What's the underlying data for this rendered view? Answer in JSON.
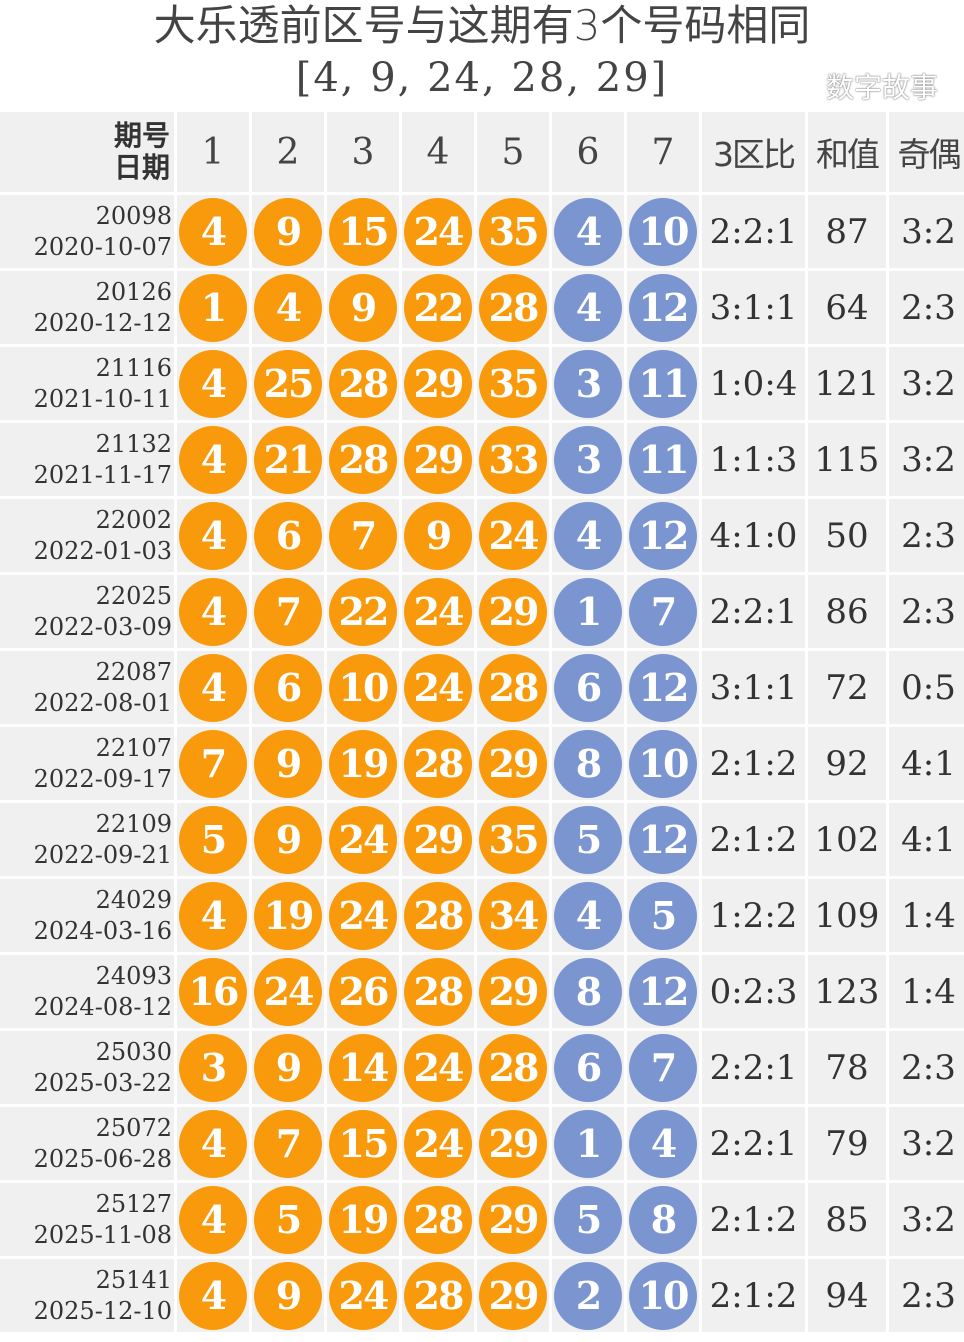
{
  "title": {
    "line1": "大乐透前区号与这期有3个号码相同",
    "line2": "[4, 9, 24, 28, 29]"
  },
  "header": {
    "period": "期号",
    "date": "日期",
    "cols": [
      "1",
      "2",
      "3",
      "4",
      "5",
      "6",
      "7"
    ],
    "ratio": "3区比",
    "sum": "和值",
    "oddeven": "奇偶"
  },
  "colors": {
    "front": "#f99a0c",
    "back": "#7a95cf"
  },
  "rows": [
    {
      "period": "20098",
      "date": "2020-10-07",
      "front": [
        "4",
        "9",
        "15",
        "24",
        "35"
      ],
      "back": [
        "4",
        "10"
      ],
      "ratio": "2:2:1",
      "sum": "87",
      "oddeven": "3:2"
    },
    {
      "period": "20126",
      "date": "2020-12-12",
      "front": [
        "1",
        "4",
        "9",
        "22",
        "28"
      ],
      "back": [
        "4",
        "12"
      ],
      "ratio": "3:1:1",
      "sum": "64",
      "oddeven": "2:3"
    },
    {
      "period": "21116",
      "date": "2021-10-11",
      "front": [
        "4",
        "25",
        "28",
        "29",
        "35"
      ],
      "back": [
        "3",
        "11"
      ],
      "ratio": "1:0:4",
      "sum": "121",
      "oddeven": "3:2"
    },
    {
      "period": "21132",
      "date": "2021-11-17",
      "front": [
        "4",
        "21",
        "28",
        "29",
        "33"
      ],
      "back": [
        "3",
        "11"
      ],
      "ratio": "1:1:3",
      "sum": "115",
      "oddeven": "3:2"
    },
    {
      "period": "22002",
      "date": "2022-01-03",
      "front": [
        "4",
        "6",
        "7",
        "9",
        "24"
      ],
      "back": [
        "4",
        "12"
      ],
      "ratio": "4:1:0",
      "sum": "50",
      "oddeven": "2:3"
    },
    {
      "period": "22025",
      "date": "2022-03-09",
      "front": [
        "4",
        "7",
        "22",
        "24",
        "29"
      ],
      "back": [
        "1",
        "7"
      ],
      "ratio": "2:2:1",
      "sum": "86",
      "oddeven": "2:3"
    },
    {
      "period": "22087",
      "date": "2022-08-01",
      "front": [
        "4",
        "6",
        "10",
        "24",
        "28"
      ],
      "back": [
        "6",
        "12"
      ],
      "ratio": "3:1:1",
      "sum": "72",
      "oddeven": "0:5"
    },
    {
      "period": "22107",
      "date": "2022-09-17",
      "front": [
        "7",
        "9",
        "19",
        "28",
        "29"
      ],
      "back": [
        "8",
        "10"
      ],
      "ratio": "2:1:2",
      "sum": "92",
      "oddeven": "4:1"
    },
    {
      "period": "22109",
      "date": "2022-09-21",
      "front": [
        "5",
        "9",
        "24",
        "29",
        "35"
      ],
      "back": [
        "5",
        "12"
      ],
      "ratio": "2:1:2",
      "sum": "102",
      "oddeven": "4:1"
    },
    {
      "period": "24029",
      "date": "2024-03-16",
      "front": [
        "4",
        "19",
        "24",
        "28",
        "34"
      ],
      "back": [
        "4",
        "5"
      ],
      "ratio": "1:2:2",
      "sum": "109",
      "oddeven": "1:4"
    },
    {
      "period": "24093",
      "date": "2024-08-12",
      "front": [
        "16",
        "24",
        "26",
        "28",
        "29"
      ],
      "back": [
        "8",
        "12"
      ],
      "ratio": "0:2:3",
      "sum": "123",
      "oddeven": "1:4"
    },
    {
      "period": "25030",
      "date": "2025-03-22",
      "front": [
        "3",
        "9",
        "14",
        "24",
        "28"
      ],
      "back": [
        "6",
        "7"
      ],
      "ratio": "2:2:1",
      "sum": "78",
      "oddeven": "2:3"
    },
    {
      "period": "25072",
      "date": "2025-06-28",
      "front": [
        "4",
        "7",
        "15",
        "24",
        "29"
      ],
      "back": [
        "1",
        "4"
      ],
      "ratio": "2:2:1",
      "sum": "79",
      "oddeven": "3:2"
    },
    {
      "period": "25127",
      "date": "2025-11-08",
      "front": [
        "4",
        "5",
        "19",
        "28",
        "29"
      ],
      "back": [
        "5",
        "8"
      ],
      "ratio": "2:1:2",
      "sum": "85",
      "oddeven": "3:2"
    },
    {
      "period": "25141",
      "date": "2025-12-10",
      "front": [
        "4",
        "9",
        "24",
        "28",
        "29"
      ],
      "back": [
        "2",
        "10"
      ],
      "ratio": "2:1:2",
      "sum": "94",
      "oddeven": "2:3"
    }
  ],
  "watermark": "数字故事"
}
